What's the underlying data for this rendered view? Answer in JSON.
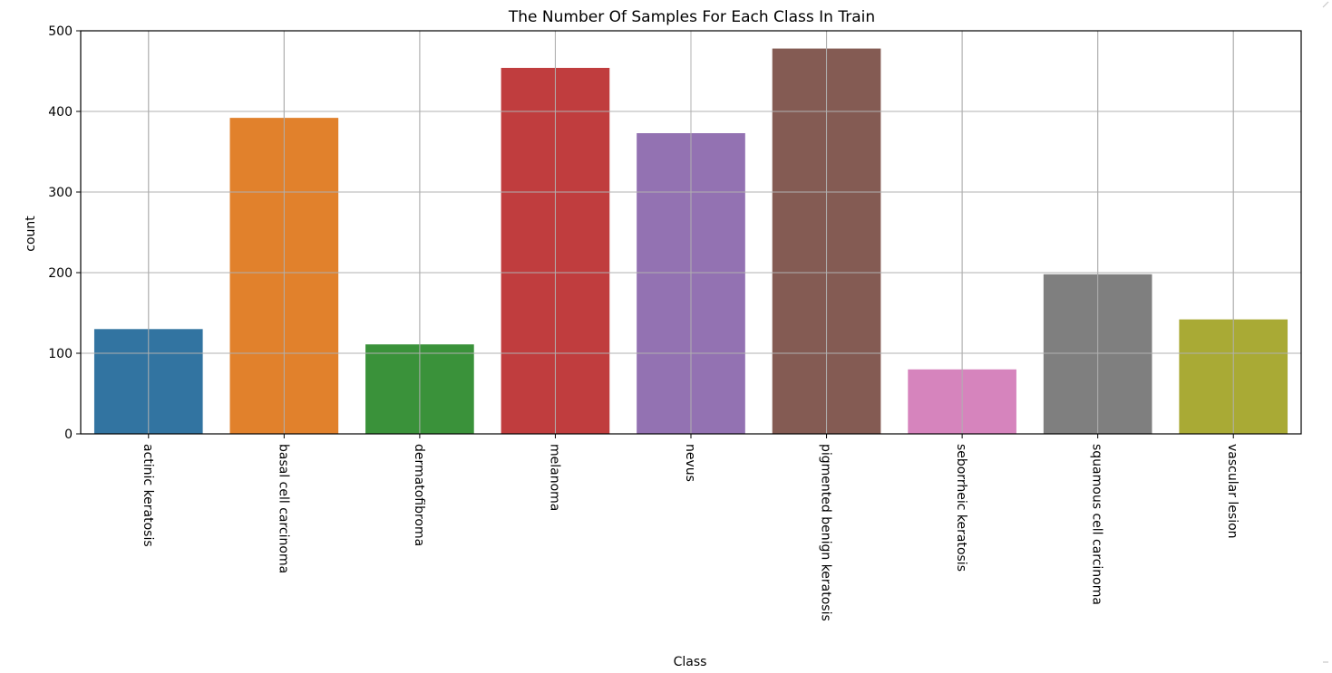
{
  "chart_data": {
    "type": "bar",
    "title": "The Number Of Samples For Each Class In Train",
    "xlabel": "Class",
    "ylabel": "count",
    "ylim": [
      0,
      500
    ],
    "yticks": [
      0,
      100,
      200,
      300,
      400,
      500
    ],
    "grid": true,
    "x_tick_rotation": "vertical",
    "categories": [
      "actinic keratosis",
      "basal cell carcinoma",
      "dermatofibroma",
      "melanoma",
      "nevus",
      "pigmented benign keratosis",
      "seborrheic keratosis",
      "squamous cell carcinoma",
      "vascular lesion"
    ],
    "values": [
      130,
      392,
      111,
      454,
      373,
      478,
      80,
      198,
      142
    ],
    "colors": [
      "#3274a1",
      "#e1812c",
      "#3a923a",
      "#c03d3e",
      "#9372b2",
      "#845b53",
      "#d684bd",
      "#7f7f7f",
      "#a9aa35"
    ]
  }
}
